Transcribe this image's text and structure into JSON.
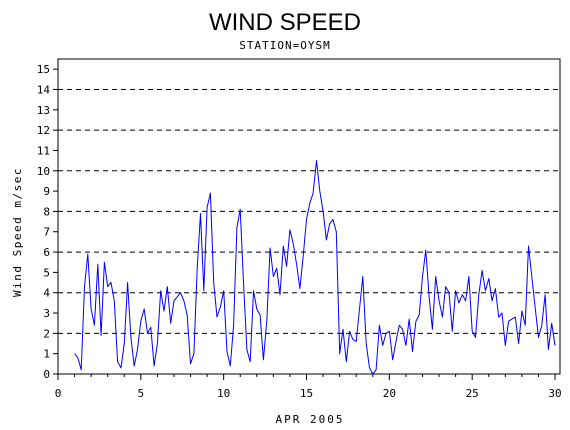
{
  "chart_data": {
    "type": "line",
    "title": "WIND SPEED",
    "subtitle": "STATION=OYSM",
    "xlabel": "APR 2005",
    "ylabel": "Wind Speed m/sec",
    "xlim": [
      0,
      30.3
    ],
    "ylim": [
      0,
      15.5
    ],
    "x_ticks": [
      0,
      5,
      10,
      15,
      20,
      25,
      30
    ],
    "x_tick_labels": [
      "0",
      "5",
      "10",
      "15",
      "20",
      "25",
      "30"
    ],
    "y_ticks": [
      0,
      1,
      2,
      3,
      4,
      5,
      6,
      7,
      8,
      9,
      10,
      11,
      12,
      13,
      14,
      15
    ],
    "y_tick_labels": [
      "0",
      "1",
      "2",
      "3",
      "4",
      "5",
      "6",
      "7",
      "8",
      "9",
      "10",
      "11",
      "12",
      "13",
      "14",
      "15"
    ],
    "reference_lines": [
      2,
      4,
      6,
      8,
      10,
      12,
      14
    ],
    "grid": "dashed horizontal reference lines at even values",
    "line_color": "#0000ff",
    "series": [
      {
        "x": [
          1.0,
          1.2,
          1.4,
          1.6,
          1.8,
          2.0,
          2.2,
          2.4,
          2.6,
          2.8,
          3.0,
          3.2,
          3.4,
          3.6,
          3.8,
          4.0,
          4.2,
          4.4,
          4.6,
          4.8,
          5.0,
          5.2,
          5.4,
          5.6,
          5.8,
          6.0,
          6.2,
          6.4,
          6.6,
          6.8,
          7.0,
          7.2,
          7.4,
          7.6,
          7.8,
          8.0,
          8.2,
          8.4,
          8.6,
          8.8,
          9.0,
          9.2,
          9.4,
          9.6,
          9.8,
          10.0,
          10.2,
          10.4,
          10.6,
          10.8,
          11.0,
          11.2,
          11.4,
          11.6,
          11.8,
          12.0,
          12.2,
          12.4,
          12.6,
          12.8,
          13.0,
          13.2,
          13.4,
          13.6,
          13.8,
          14.0,
          14.2,
          14.4,
          14.6,
          14.8,
          15.0,
          15.2,
          15.4,
          15.6,
          15.8,
          16.0,
          16.2,
          16.4,
          16.6,
          16.8,
          17.0,
          17.2,
          17.4,
          17.6,
          17.8,
          18.0,
          18.2,
          18.4,
          18.6,
          18.8,
          19.0,
          19.2,
          19.4,
          19.6,
          19.8,
          20.0,
          20.2,
          20.4,
          20.6,
          20.8,
          21.0,
          21.2,
          21.4,
          21.6,
          21.8,
          22.0,
          22.2,
          22.4,
          22.6,
          22.8,
          23.0,
          23.2,
          23.4,
          23.6,
          23.8,
          24.0,
          24.2,
          24.4,
          24.6,
          24.8,
          25.0,
          25.2,
          25.4,
          25.6,
          25.8,
          26.0,
          26.2,
          26.4,
          26.6,
          26.8,
          27.0,
          27.2,
          27.4,
          27.6,
          27.8,
          28.0,
          28.2,
          28.4,
          28.6,
          28.8,
          29.0,
          29.2,
          29.4,
          29.6,
          29.8,
          30.0
        ],
        "y": [
          1.0,
          0.8,
          0.2,
          4.3,
          5.9,
          3.2,
          2.4,
          5.4,
          1.9,
          5.5,
          4.3,
          4.5,
          3.6,
          0.6,
          0.3,
          1.5,
          4.5,
          1.8,
          0.4,
          1.2,
          2.6,
          3.2,
          2.0,
          2.3,
          0.4,
          1.5,
          4.1,
          3.1,
          4.3,
          2.5,
          3.6,
          3.8,
          4.0,
          3.6,
          2.9,
          0.5,
          1.0,
          5.2,
          7.9,
          4.1,
          8.2,
          8.9,
          4.5,
          2.8,
          3.3,
          4.1,
          1.1,
          0.4,
          2.4,
          7.2,
          8.1,
          4.4,
          1.2,
          0.6,
          4.1,
          3.2,
          2.9,
          0.7,
          2.6,
          6.2,
          4.8,
          5.2,
          3.9,
          6.3,
          5.3,
          7.1,
          6.4,
          5.4,
          4.2,
          5.8,
          7.6,
          8.4,
          8.9,
          10.5,
          9.0,
          8.0,
          6.6,
          7.4,
          7.6,
          7.0,
          1.0,
          2.2,
          0.6,
          2.1,
          1.7,
          1.6,
          3.2,
          4.8,
          1.5,
          0.3,
          0.0,
          0.2,
          2.4,
          1.4,
          2.0,
          2.1,
          0.7,
          1.6,
          2.4,
          2.2,
          1.4,
          2.7,
          1.1,
          2.6,
          2.9,
          4.8,
          6.1,
          3.8,
          2.2,
          4.8,
          3.6,
          2.8,
          4.3,
          4.0,
          2.1,
          4.1,
          3.5,
          3.9,
          3.6,
          4.8,
          2.1,
          1.8,
          3.9,
          5.1,
          4.1,
          4.7,
          3.6,
          4.2,
          2.8,
          3.0,
          1.4,
          2.6,
          2.7,
          2.8,
          1.5,
          3.1,
          2.4,
          6.3,
          4.8,
          3.3,
          1.8,
          2.4,
          3.9,
          1.2,
          2.5,
          1.4
        ]
      }
    ]
  }
}
